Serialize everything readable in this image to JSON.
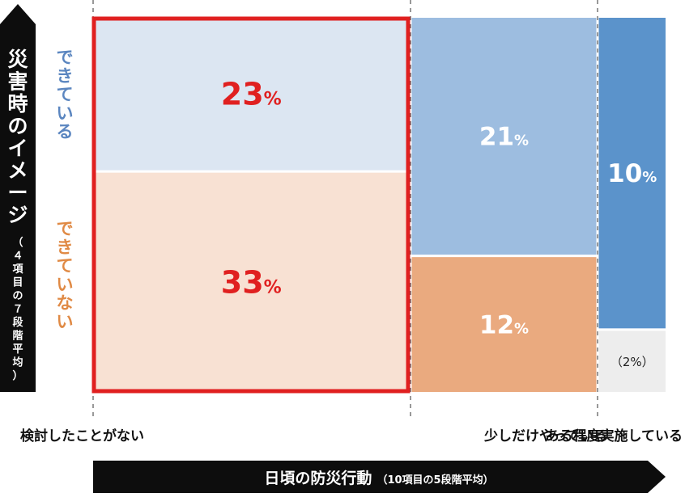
{
  "chart_data": {
    "type": "mosaic",
    "y_axis": {
      "title": "災害時のイメージ",
      "subtitle": "（４項目の７段階平均）",
      "categories": [
        "できている",
        "できていない"
      ],
      "category_colors": [
        "#5b86c0",
        "#e08a45"
      ]
    },
    "x_axis": {
      "title": "日頃の防災行動",
      "subtitle": "（10項目の5段階平均）",
      "categories": [
        "検討したことがない",
        "少しだけやっている",
        "ある程度実施している"
      ]
    },
    "cells": [
      {
        "x_category": "検討したことがない",
        "y_category": "できている",
        "value": 23,
        "label": "23",
        "unit": "%",
        "color": "#dce6f2",
        "text_color": "#e02020"
      },
      {
        "x_category": "検討したことがない",
        "y_category": "できていない",
        "value": 33,
        "label": "33",
        "unit": "%",
        "color": "#f8e1d3",
        "text_color": "#e02020"
      },
      {
        "x_category": "少しだけやっている",
        "y_category": "できている",
        "value": 21,
        "label": "21",
        "unit": "%",
        "color": "#9dbde0",
        "text_color": "#ffffff"
      },
      {
        "x_category": "少しだけやっている",
        "y_category": "できていない",
        "value": 12,
        "label": "12",
        "unit": "%",
        "color": "#eaaa7f",
        "text_color": "#ffffff"
      },
      {
        "x_category": "ある程度実施している",
        "y_category": "できている",
        "value": 10,
        "label": "10",
        "unit": "%",
        "color": "#5b93cb",
        "text_color": "#ffffff"
      },
      {
        "x_category": "ある程度実施している",
        "y_category": "できていない",
        "value": 2,
        "label": "（2%）",
        "unit": "",
        "color": "#ededed",
        "text_color": "#222222"
      }
    ],
    "highlight": {
      "x_category": "検討したことがない",
      "color": "#e02020"
    }
  }
}
